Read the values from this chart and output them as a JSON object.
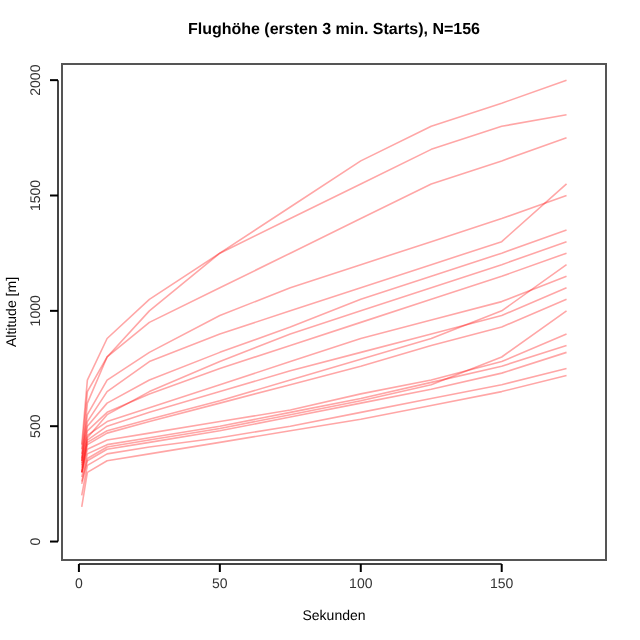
{
  "chart_data": {
    "type": "line",
    "title": "Flughöhe (ersten 3 min. Starts), N=156",
    "xlabel": "Sekunden",
    "ylabel": "Altitude [m]",
    "x": [
      1,
      3,
      10,
      25,
      50,
      75,
      100,
      125,
      150,
      173
    ],
    "xlim": [
      -6,
      187
    ],
    "ylim": [
      -80,
      2070
    ],
    "xticks": [
      0,
      50,
      100,
      150
    ],
    "yticks": [
      0,
      500,
      1000,
      1500,
      2000
    ],
    "grid": false,
    "marker": "none",
    "line_style": "solid",
    "series": [
      {
        "color": "#ff0000",
        "values": [
          300,
          400,
          440,
          470,
          520,
          570,
          640,
          700,
          780,
          900
        ]
      },
      {
        "color": "#ff0000",
        "values": [
          250,
          350,
          400,
          430,
          480,
          540,
          600,
          660,
          730,
          820
        ]
      },
      {
        "color": "#ff0000",
        "values": [
          350,
          500,
          600,
          700,
          820,
          930,
          1050,
          1150,
          1250,
          1350
        ]
      },
      {
        "color": "#ff0000",
        "values": [
          300,
          450,
          550,
          650,
          780,
          900,
          1000,
          1100,
          1200,
          1300
        ]
      },
      {
        "color": "#ff0000",
        "values": [
          400,
          650,
          800,
          950,
          1100,
          1250,
          1400,
          1550,
          1650,
          1750
        ]
      },
      {
        "color": "#ff0000",
        "values": [
          350,
          600,
          800,
          1000,
          1250,
          1450,
          1650,
          1800,
          1900,
          2000
        ]
      },
      {
        "color": "#ff0000",
        "values": [
          200,
          330,
          380,
          410,
          450,
          500,
          560,
          620,
          680,
          750
        ]
      },
      {
        "color": "#ff0000",
        "values": [
          300,
          420,
          470,
          520,
          600,
          680,
          760,
          850,
          930,
          1050
        ]
      },
      {
        "color": "#ff0000",
        "values": [
          380,
          550,
          700,
          820,
          980,
          1100,
          1200,
          1300,
          1400,
          1500
        ]
      },
      {
        "color": "#ff0000",
        "values": [
          320,
          440,
          500,
          560,
          650,
          740,
          820,
          900,
          980,
          1100
        ]
      },
      {
        "color": "#ff0000",
        "values": [
          280,
          380,
          420,
          450,
          500,
          560,
          620,
          690,
          760,
          850
        ]
      },
      {
        "color": "#ff0000",
        "values": [
          360,
          520,
          650,
          780,
          900,
          1000,
          1100,
          1200,
          1300,
          1550
        ]
      },
      {
        "color": "#ff0000",
        "values": [
          330,
          460,
          520,
          580,
          680,
          780,
          880,
          960,
          1040,
          1150
        ]
      },
      {
        "color": "#ff0000",
        "values": [
          260,
          360,
          410,
          440,
          490,
          550,
          610,
          680,
          800,
          1000
        ]
      },
      {
        "color": "#ff0000",
        "values": [
          420,
          700,
          880,
          1050,
          1250,
          1400,
          1550,
          1700,
          1800,
          1850
        ]
      },
      {
        "color": "#ff0000",
        "values": [
          300,
          430,
          480,
          530,
          610,
          700,
          790,
          880,
          1000,
          1200
        ]
      },
      {
        "color": "#ff0000",
        "values": [
          150,
          300,
          350,
          380,
          430,
          480,
          530,
          590,
          650,
          720
        ]
      },
      {
        "color": "#ff0000",
        "values": [
          340,
          480,
          560,
          640,
          750,
          850,
          950,
          1050,
          1150,
          1250
        ]
      }
    ]
  }
}
